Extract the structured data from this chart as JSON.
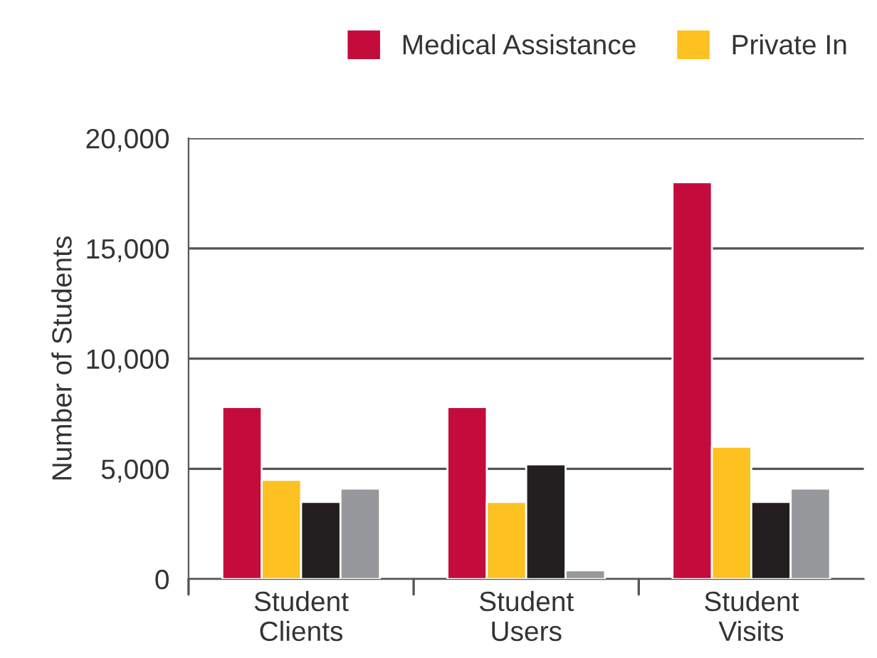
{
  "chart_data": {
    "type": "bar",
    "ylabel": "Number of Students",
    "categories": [
      "Student\nClients",
      "Student\nUsers",
      "Student\nVisits"
    ],
    "series": [
      {
        "name": "Medical Assistance",
        "color": "#c40c3c",
        "values": [
          7800,
          7800,
          18000
        ]
      },
      {
        "name": "Private In",
        "color": "#fdc121",
        "values": [
          4500,
          3500,
          6000
        ]
      },
      {
        "color": "#231f20",
        "values": [
          3500,
          5200,
          3500
        ]
      },
      {
        "color": "#97989b",
        "values": [
          4100,
          400,
          4100
        ]
      }
    ],
    "ylim": [
      0,
      20000
    ],
    "yticks": [
      {
        "value": 0,
        "label": "0"
      },
      {
        "value": 5000,
        "label": "5,000"
      },
      {
        "value": 10000,
        "label": "10,000"
      },
      {
        "value": 15000,
        "label": "15,000"
      },
      {
        "value": 20000,
        "label": "20,000"
      }
    ],
    "grid": "y",
    "legend": "top right"
  }
}
